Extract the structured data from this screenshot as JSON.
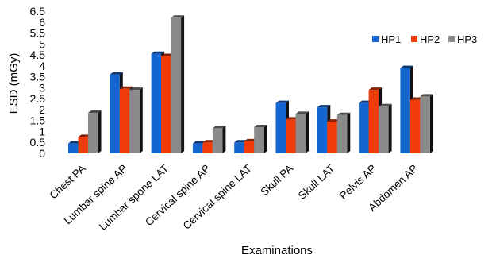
{
  "chart_data": {
    "type": "bar",
    "title": "",
    "xlabel": "Examinations",
    "ylabel": "ESD (mGy)",
    "ylim": [
      0,
      6.5
    ],
    "yticks": [
      "0",
      "0.5",
      "1",
      "1.5",
      "2",
      "2.5",
      "3",
      "3.5",
      "4",
      "4.5",
      "5",
      "5.5",
      "6",
      "6.5"
    ],
    "categories": [
      "Chest PA",
      "Lumbar spine AP",
      "Lumbar spone LAT",
      "Cervical spine AP",
      "Cervical spine LAT",
      "Skull PA",
      "Skull LAT",
      "Pelvis AP",
      "Abdomen AP"
    ],
    "series": [
      {
        "name": "HP1",
        "color": "#1565d0",
        "values": [
          0.45,
          3.6,
          4.55,
          0.45,
          0.5,
          2.3,
          2.1,
          2.3,
          3.9
        ]
      },
      {
        "name": "HP2",
        "color": "#f03c0a",
        "values": [
          0.75,
          2.95,
          4.45,
          0.5,
          0.55,
          1.55,
          1.45,
          2.9,
          2.45
        ]
      },
      {
        "name": "HP3",
        "color": "#8a8a8a",
        "values": [
          1.85,
          2.9,
          6.2,
          1.15,
          1.2,
          1.8,
          1.75,
          2.15,
          2.6
        ]
      }
    ],
    "legend_position": "top-right",
    "grid": false,
    "style": "3d-bar"
  }
}
